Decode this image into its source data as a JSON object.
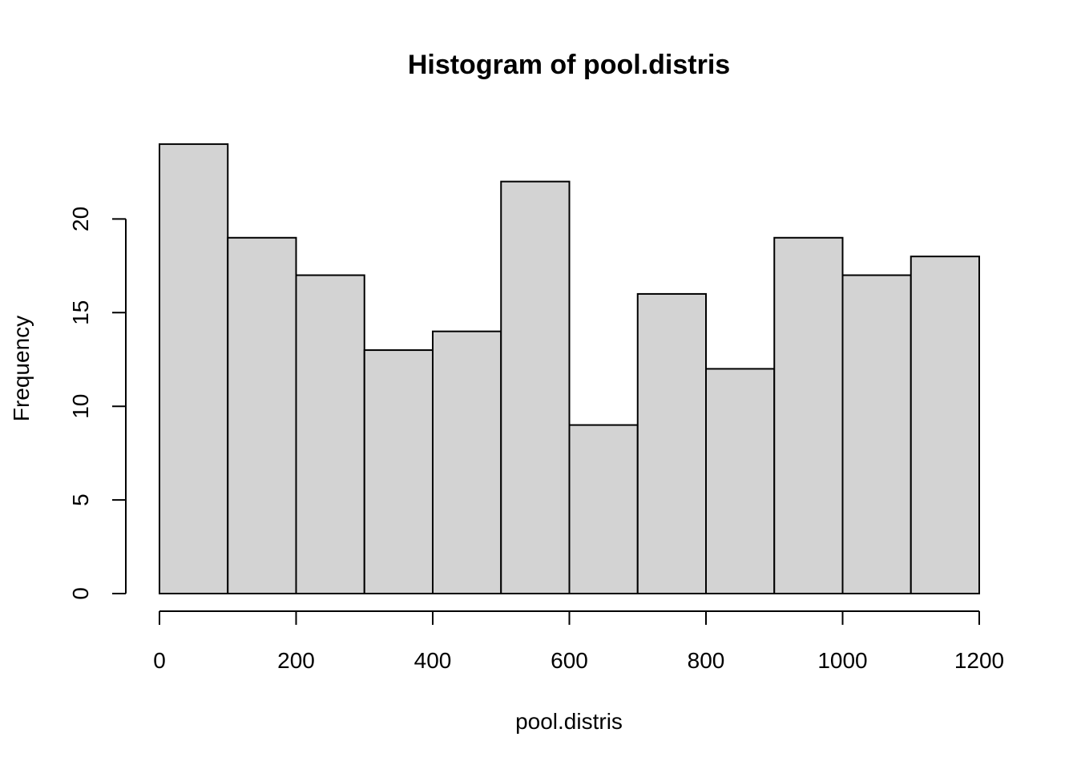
{
  "chart_data": {
    "type": "bar",
    "title": "Histogram of pool.distris",
    "xlabel": "pool.distris",
    "ylabel": "Frequency",
    "bins": [
      {
        "start": 0,
        "end": 100,
        "count": 24
      },
      {
        "start": 100,
        "end": 200,
        "count": 19
      },
      {
        "start": 200,
        "end": 300,
        "count": 17
      },
      {
        "start": 300,
        "end": 400,
        "count": 13
      },
      {
        "start": 400,
        "end": 500,
        "count": 14
      },
      {
        "start": 500,
        "end": 600,
        "count": 22
      },
      {
        "start": 600,
        "end": 700,
        "count": 9
      },
      {
        "start": 700,
        "end": 800,
        "count": 16
      },
      {
        "start": 800,
        "end": 900,
        "count": 12
      },
      {
        "start": 900,
        "end": 1000,
        "count": 19
      },
      {
        "start": 1000,
        "end": 1100,
        "count": 17
      },
      {
        "start": 1100,
        "end": 1200,
        "count": 18
      }
    ],
    "x_ticks": [
      0,
      200,
      400,
      600,
      800,
      1000,
      1200
    ],
    "y_ticks": [
      0,
      5,
      10,
      15,
      20
    ],
    "xlim": [
      0,
      1200
    ],
    "ylim": [
      0,
      24
    ],
    "bar_color": "#d3d3d3",
    "grid": false
  }
}
